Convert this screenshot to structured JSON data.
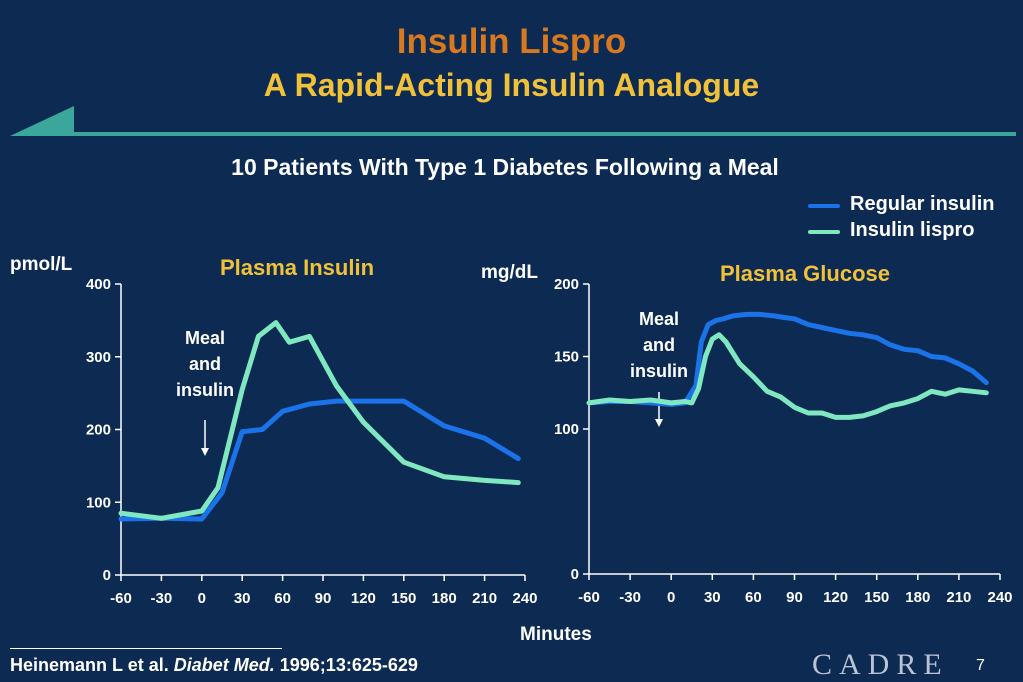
{
  "slide": {
    "title": "Insulin Lispro",
    "subtitle": "A Rapid-Acting Insulin Analogue",
    "heading": "10 Patients With Type 1 Diabetes Following a Meal",
    "shared_xlabel": "Minutes",
    "citation_authors": "Heinemann L et al.",
    "citation_journal": "Diabet Med.",
    "citation_ref": "1996;13:625-629",
    "logo": "CADRE",
    "page_number": "7"
  },
  "legend": [
    {
      "name": "Regular insulin",
      "color": "#1a73e8"
    },
    {
      "name": "Insulin lispro",
      "color": "#7fe8c0"
    }
  ],
  "colors": {
    "background": "#0c2a52",
    "title": "#d8781f",
    "subtitle": "#f2c13a",
    "panel_title": "#f2c13a",
    "accent_rule": "#3aa79a",
    "regular": "#1a73e8",
    "lispro": "#7fe8c0"
  },
  "chart_data": [
    {
      "type": "line",
      "title": "Plasma Insulin",
      "ylabel": "pmol/L",
      "xlabel": "Minutes",
      "xlim": [
        -60,
        240
      ],
      "ylim": [
        0,
        400
      ],
      "xticks": [
        -60,
        -30,
        0,
        30,
        60,
        90,
        120,
        150,
        180,
        210,
        240
      ],
      "yticks": [
        0,
        100,
        200,
        300,
        400
      ],
      "annotation": {
        "lines": [
          "Meal",
          "and",
          "insulin"
        ],
        "x": 0
      },
      "series": [
        {
          "name": "Regular insulin",
          "x": [
            -60,
            -30,
            0,
            15,
            30,
            45,
            60,
            80,
            100,
            125,
            150,
            180,
            210,
            235
          ],
          "y": [
            77,
            78,
            77,
            113,
            197,
            200,
            225,
            235,
            239,
            239,
            239,
            205,
            188,
            160
          ]
        },
        {
          "name": "Insulin lispro",
          "x": [
            -60,
            -30,
            0,
            12,
            30,
            42,
            55,
            65,
            80,
            100,
            120,
            150,
            180,
            210,
            235
          ],
          "y": [
            85,
            78,
            88,
            120,
            255,
            328,
            347,
            320,
            328,
            260,
            210,
            155,
            135,
            130,
            127
          ]
        }
      ]
    },
    {
      "type": "line",
      "title": "Plasma Glucose",
      "ylabel": "mg/dL",
      "xlabel": "Minutes",
      "xlim": [
        -60,
        240
      ],
      "ylim": [
        0,
        200
      ],
      "xticks": [
        -60,
        -30,
        0,
        30,
        60,
        90,
        120,
        150,
        180,
        210,
        240
      ],
      "yticks": [
        0,
        100,
        150,
        200
      ],
      "annotation": {
        "lines": [
          "Meal",
          "and",
          "insulin"
        ],
        "x": -10
      },
      "series": [
        {
          "name": "Regular insulin",
          "x": [
            -60,
            -45,
            -30,
            -15,
            0,
            10,
            18,
            22,
            27,
            33,
            38,
            45,
            55,
            65,
            75,
            82,
            90,
            100,
            110,
            120,
            130,
            140,
            150,
            160,
            170,
            180,
            190,
            200,
            210,
            220,
            230
          ],
          "y": [
            118,
            119,
            119,
            118,
            117,
            118,
            130,
            160,
            172,
            175,
            176,
            178,
            179,
            179,
            178,
            177,
            176,
            172,
            170,
            168,
            166,
            165,
            163,
            158,
            155,
            154,
            150,
            149,
            145,
            140,
            132
          ]
        },
        {
          "name": "Insulin lispro",
          "x": [
            -60,
            -45,
            -30,
            -15,
            0,
            10,
            15,
            20,
            25,
            30,
            35,
            40,
            50,
            60,
            70,
            80,
            90,
            100,
            110,
            120,
            130,
            140,
            150,
            160,
            170,
            180,
            190,
            200,
            210,
            220,
            230
          ],
          "y": [
            118,
            120,
            119,
            120,
            118,
            119,
            118,
            128,
            150,
            162,
            165,
            160,
            145,
            136,
            126,
            122,
            115,
            111,
            111,
            108,
            108,
            109,
            112,
            116,
            118,
            121,
            126,
            124,
            127,
            126,
            125
          ]
        }
      ]
    }
  ]
}
